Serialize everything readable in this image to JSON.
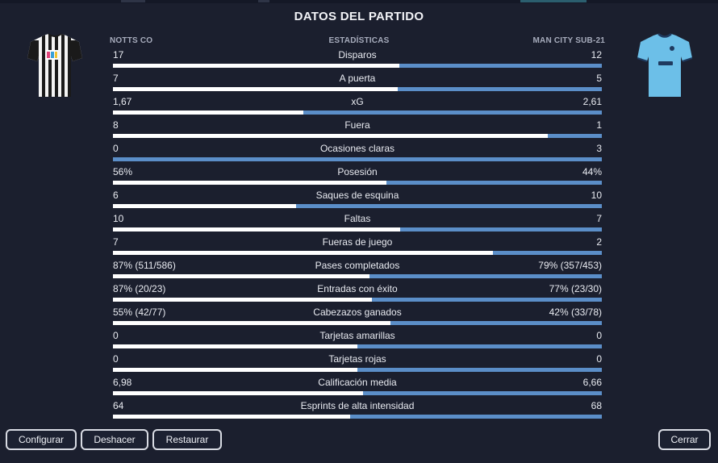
{
  "dialog": {
    "title": "DATOS DEL PARTIDO"
  },
  "headers": {
    "home_team": "NOTTS CO",
    "center": "ESTADÍSTICAS",
    "away_team": "MAN CITY SUB-21"
  },
  "colors": {
    "home_bar": "#ffffff",
    "away_bar": "#5b8ec8",
    "home_kit": "black-white-stripes",
    "away_kit": "#6cbfe8"
  },
  "stats": [
    {
      "label": "Disparos",
      "home": "17",
      "away": "12",
      "home_share": 0.586
    },
    {
      "label": "A puerta",
      "home": "7",
      "away": "5",
      "home_share": 0.583
    },
    {
      "label": "xG",
      "home": "1,67",
      "away": "2,61",
      "home_share": 0.39
    },
    {
      "label": "Fuera",
      "home": "8",
      "away": "1",
      "home_share": 0.889
    },
    {
      "label": "Ocasiones claras",
      "home": "0",
      "away": "3",
      "home_share": 0.0
    },
    {
      "label": "Posesión",
      "home": "56%",
      "away": "44%",
      "home_share": 0.56
    },
    {
      "label": "Saques de esquina",
      "home": "6",
      "away": "10",
      "home_share": 0.375
    },
    {
      "label": "Faltas",
      "home": "10",
      "away": "7",
      "home_share": 0.588
    },
    {
      "label": "Fueras de juego",
      "home": "7",
      "away": "2",
      "home_share": 0.778
    },
    {
      "label": "Pases completados",
      "home": "87% (511/586)",
      "away": "79% (357/453)",
      "home_share": 0.524
    },
    {
      "label": "Entradas con éxito",
      "home": "87% (20/23)",
      "away": "77% (23/30)",
      "home_share": 0.53
    },
    {
      "label": "Cabezazos ganados",
      "home": "55% (42/77)",
      "away": "42% (33/78)",
      "home_share": 0.567
    },
    {
      "label": "Tarjetas amarillas",
      "home": "0",
      "away": "0",
      "home_share": 0.5
    },
    {
      "label": "Tarjetas rojas",
      "home": "0",
      "away": "0",
      "home_share": 0.5
    },
    {
      "label": "Calificación media",
      "home": "6,98",
      "away": "6,66",
      "home_share": 0.512
    },
    {
      "label": "Esprints de alta intensidad",
      "home": "64",
      "away": "68",
      "home_share": 0.485
    }
  ],
  "buttons": {
    "configure": "Configurar",
    "undo": "Deshacer",
    "restore": "Restaurar",
    "close": "Cerrar"
  }
}
